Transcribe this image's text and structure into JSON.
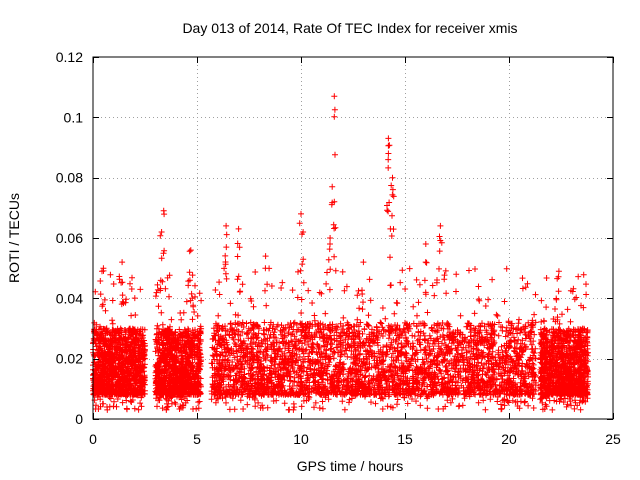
{
  "chart_data": {
    "type": "scatter",
    "title": "Day 013 of 2014, Rate Of TEC Index for receiver xmis",
    "xlabel": "GPS time / hours",
    "ylabel": "ROTI / TECUs",
    "xlim": [
      0,
      25
    ],
    "ylim": [
      0,
      0.12
    ],
    "x_ticks": [
      0,
      5,
      10,
      15,
      20,
      25
    ],
    "x_tick_labels": [
      "0",
      "5",
      "10",
      "15",
      "20",
      "25"
    ],
    "y_ticks": [
      0,
      0.02,
      0.04,
      0.06,
      0.08,
      0.1,
      0.12
    ],
    "y_tick_labels": [
      "0",
      "0.02",
      "0.04",
      "0.06",
      "0.08",
      "0.1",
      "0.12"
    ],
    "grid": true,
    "marker": "plus",
    "color": "#ff0000",
    "series": [
      {
        "name": "ROTI",
        "dense_segments": [
          {
            "x_start": 0.0,
            "x_end": 2.5,
            "baseline": 0.008,
            "typical_max": 0.03
          },
          {
            "x_start": 3.0,
            "x_end": 5.2,
            "baseline": 0.008,
            "typical_max": 0.03
          },
          {
            "x_start": 5.7,
            "x_end": 21.3,
            "baseline": 0.008,
            "typical_max": 0.032
          },
          {
            "x_start": 21.5,
            "x_end": 23.8,
            "baseline": 0.008,
            "typical_max": 0.03
          }
        ],
        "notable_points": [
          {
            "x": 11.6,
            "y": 0.107
          },
          {
            "x": 14.2,
            "y": 0.093
          },
          {
            "x": 14.2,
            "y": 0.088
          },
          {
            "x": 14.4,
            "y": 0.08
          },
          {
            "x": 11.5,
            "y": 0.077
          },
          {
            "x": 11.6,
            "y": 0.072
          },
          {
            "x": 3.4,
            "y": 0.069
          },
          {
            "x": 10.0,
            "y": 0.068
          },
          {
            "x": 16.7,
            "y": 0.064
          },
          {
            "x": 6.4,
            "y": 0.064
          },
          {
            "x": 7.0,
            "y": 0.063
          },
          {
            "x": 3.3,
            "y": 0.062
          },
          {
            "x": 10.1,
            "y": 0.062
          },
          {
            "x": 11.4,
            "y": 0.06
          },
          {
            "x": 14.3,
            "y": 0.063
          },
          {
            "x": 16.0,
            "y": 0.058
          },
          {
            "x": 4.7,
            "y": 0.056
          },
          {
            "x": 8.3,
            "y": 0.054
          },
          {
            "x": 1.4,
            "y": 0.052
          },
          {
            "x": 13.0,
            "y": 0.052
          },
          {
            "x": 0.5,
            "y": 0.05
          },
          {
            "x": 22.4,
            "y": 0.049
          }
        ]
      }
    ]
  }
}
